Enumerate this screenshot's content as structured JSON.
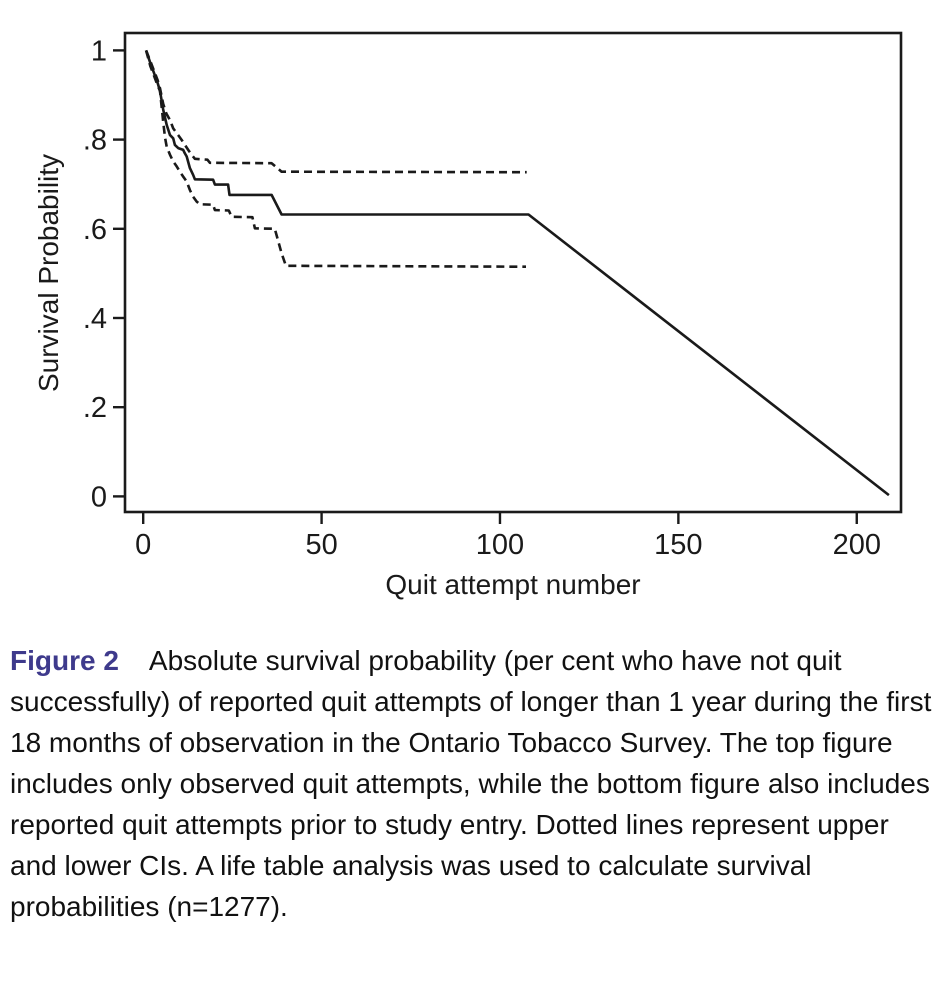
{
  "caption": {
    "label": "Figure 2",
    "body": "Absolute survival probability (per cent who have not quit successfully) of reported quit attempts of longer than 1 year during the first 18 months of observation in the Ontario Tobacco Survey. The top figure includes only observed quit attempts, while the bottom figure also includes reported quit attempts prior to study entry. Dotted lines represent upper and lower CIs. A life table analysis was used to calculate survival probabilities (n=1277)."
  },
  "colors": {
    "figure_label": "#3e3a8c",
    "line": "#1a1a1a",
    "text": "#111111"
  },
  "chart_data": {
    "type": "line",
    "title": "",
    "xlabel": "Quit attempt number",
    "ylabel": "Survival Probability",
    "xlim": [
      -5.1,
      212.4
    ],
    "ylim": [
      -0.035,
      1.039
    ],
    "grid": false,
    "legend": "none",
    "xticks": [
      {
        "value": 0,
        "label": "0"
      },
      {
        "value": 50,
        "label": "50"
      },
      {
        "value": 100,
        "label": "100"
      },
      {
        "value": 150,
        "label": "150"
      },
      {
        "value": 200,
        "label": "200"
      }
    ],
    "yticks": [
      {
        "value": 0,
        "label": "0"
      },
      {
        "value": 0.2,
        "label": ".2"
      },
      {
        "value": 0.4,
        "label": ".4"
      },
      {
        "value": 0.6,
        "label": ".6"
      },
      {
        "value": 0.8,
        "label": ".8"
      },
      {
        "value": 1,
        "label": "1"
      }
    ],
    "series": [
      {
        "name": "survival",
        "style": "solid",
        "points": [
          [
            0.8,
            1.0
          ],
          [
            2,
            0.972
          ],
          [
            3,
            0.95
          ],
          [
            4,
            0.928
          ],
          [
            4.7,
            0.909
          ],
          [
            5.6,
            0.867
          ],
          [
            6.6,
            0.833
          ],
          [
            7.5,
            0.81
          ],
          [
            8.4,
            0.803
          ],
          [
            8.9,
            0.788
          ],
          [
            9.8,
            0.781
          ],
          [
            11.2,
            0.777
          ],
          [
            11.7,
            0.769
          ],
          [
            12.2,
            0.762
          ],
          [
            13.1,
            0.736
          ],
          [
            14,
            0.721
          ],
          [
            14.5,
            0.711
          ],
          [
            19.6,
            0.71
          ],
          [
            20.1,
            0.699
          ],
          [
            23.8,
            0.699
          ],
          [
            24.2,
            0.676
          ],
          [
            36,
            0.676
          ],
          [
            38.8,
            0.632
          ],
          [
            108,
            0.632
          ],
          [
            209,
            0.003
          ]
        ]
      },
      {
        "name": "upper_ci",
        "style": "dashed",
        "points": [
          [
            0.8,
            1.0
          ],
          [
            2,
            0.976
          ],
          [
            3,
            0.955
          ],
          [
            4,
            0.934
          ],
          [
            4.7,
            0.915
          ],
          [
            5.6,
            0.88
          ],
          [
            6.5,
            0.858
          ],
          [
            7.5,
            0.844
          ],
          [
            8.4,
            0.825
          ],
          [
            9.8,
            0.81
          ],
          [
            10.8,
            0.799
          ],
          [
            11.7,
            0.788
          ],
          [
            12.6,
            0.777
          ],
          [
            13.6,
            0.766
          ],
          [
            14.5,
            0.757
          ],
          [
            18,
            0.755
          ],
          [
            18.7,
            0.748
          ],
          [
            36,
            0.747
          ],
          [
            38.8,
            0.728
          ],
          [
            107.5,
            0.727
          ]
        ]
      },
      {
        "name": "lower_ci",
        "style": "dashed",
        "points": [
          [
            0.8,
            1.0
          ],
          [
            2,
            0.965
          ],
          [
            3,
            0.944
          ],
          [
            4,
            0.922
          ],
          [
            4.7,
            0.909
          ],
          [
            5.6,
            0.84
          ],
          [
            6.1,
            0.805
          ],
          [
            6.6,
            0.784
          ],
          [
            7.5,
            0.766
          ],
          [
            8.4,
            0.751
          ],
          [
            9.4,
            0.74
          ],
          [
            10.3,
            0.728
          ],
          [
            11.2,
            0.717
          ],
          [
            12.2,
            0.706
          ],
          [
            13.1,
            0.687
          ],
          [
            14,
            0.672
          ],
          [
            15,
            0.661
          ],
          [
            15.9,
            0.655
          ],
          [
            19.6,
            0.654
          ],
          [
            20.1,
            0.642
          ],
          [
            24,
            0.641
          ],
          [
            24.8,
            0.627
          ],
          [
            30.6,
            0.626
          ],
          [
            31.3,
            0.601
          ],
          [
            36.9,
            0.6
          ],
          [
            38.8,
            0.545
          ],
          [
            40,
            0.517
          ],
          [
            107.3,
            0.515
          ]
        ]
      }
    ]
  }
}
